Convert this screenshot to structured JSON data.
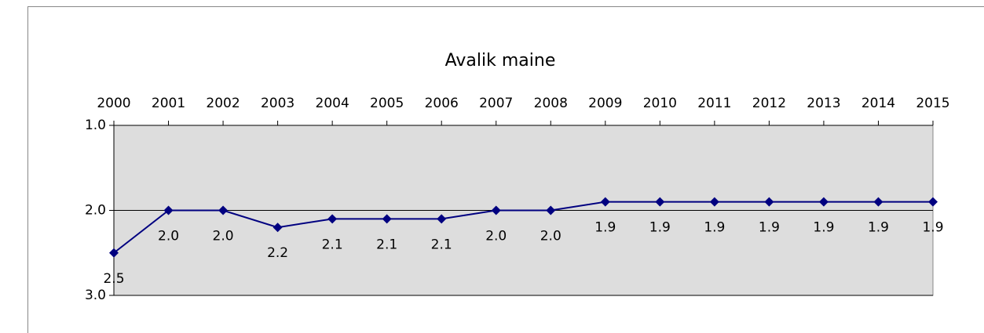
{
  "chart_data": {
    "type": "line",
    "title": "Avalik maine",
    "categories": [
      "2000",
      "2001",
      "2002",
      "2003",
      "2004",
      "2005",
      "2006",
      "2007",
      "2008",
      "2009",
      "2010",
      "2011",
      "2012",
      "2013",
      "2014",
      "2015"
    ],
    "series": [
      {
        "name": "Avalik maine",
        "color": "#000080",
        "values": [
          2.5,
          2,
          2,
          2.2,
          2.1,
          2.1,
          2.1,
          2,
          2,
          1.9,
          1.9,
          1.9,
          1.9,
          1.9,
          1.9,
          1.9
        ],
        "value_labels": [
          "2.5",
          "2.0",
          "2.0",
          "2.2",
          "2.1",
          "2.1",
          "2.1",
          "2.0",
          "2.0",
          "1.9",
          "1.9",
          "1.9",
          "1.9",
          "1.9",
          "1.9",
          "1.9"
        ]
      }
    ],
    "ylim": [
      1,
      3
    ],
    "yticks": [
      {
        "value": 1,
        "label": "1.0"
      },
      {
        "value": 2,
        "label": "2.0"
      },
      {
        "value": 3,
        "label": "3.0"
      }
    ],
    "inverted_y": true,
    "grid": true,
    "x_axis_position": "top",
    "plot_background": "#dddddd"
  }
}
